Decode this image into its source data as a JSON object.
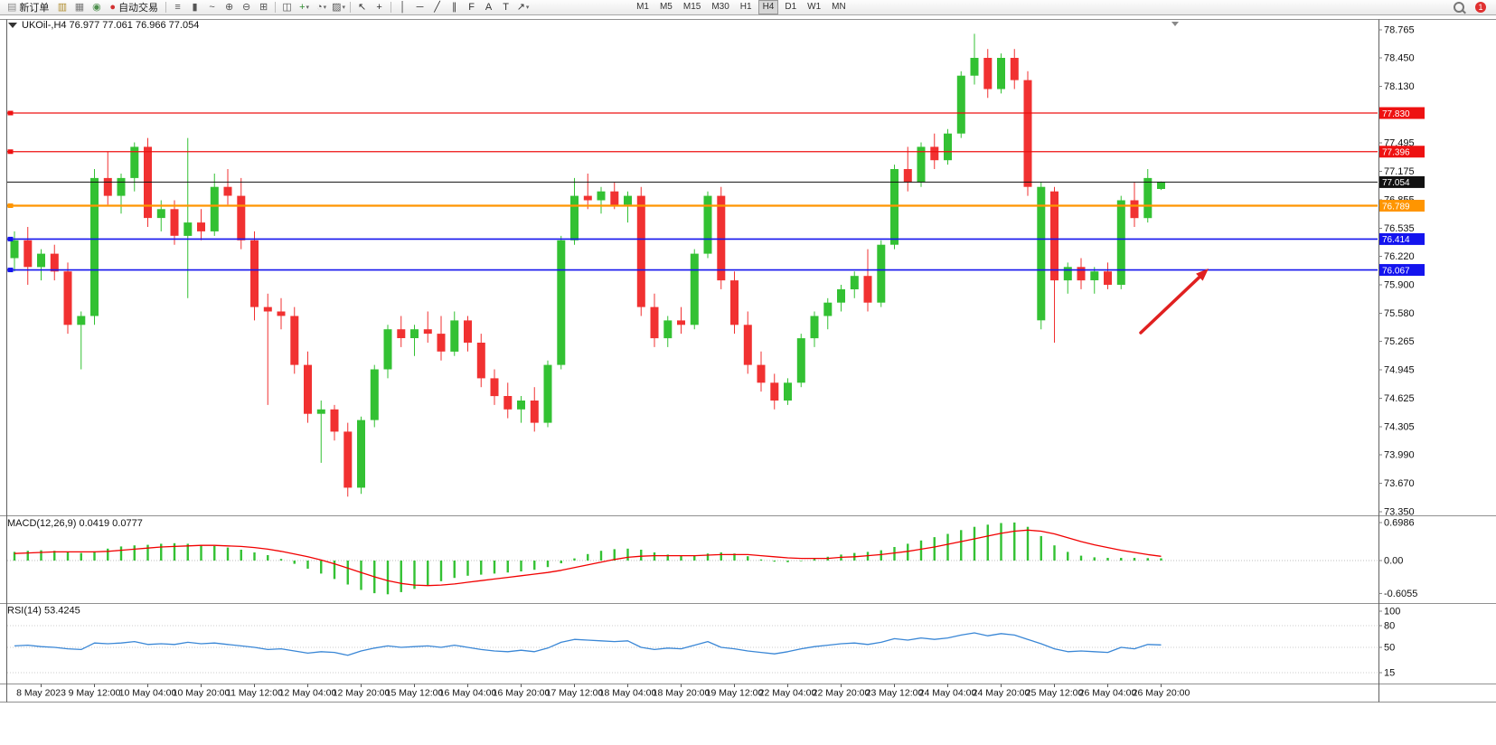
{
  "toolbar": {
    "items": [
      {
        "kind": "label",
        "name": "new-order-button",
        "glyph": "▤",
        "color": "#8a8a8a",
        "label": "新订单"
      },
      {
        "kind": "icon",
        "name": "market-watch-icon",
        "glyph": "▥",
        "color": "#b08d2f"
      },
      {
        "kind": "icon",
        "name": "print-icon",
        "glyph": "▦",
        "color": "#777777"
      },
      {
        "kind": "icon",
        "name": "navigator-icon",
        "glyph": "◉",
        "color": "#4d8f4d"
      },
      {
        "kind": "label",
        "name": "autotrading-button",
        "glyph": "●",
        "color": "#d23232",
        "label": "自动交易"
      },
      {
        "kind": "sep"
      },
      {
        "kind": "icon",
        "name": "bar-chart-mode-icon",
        "glyph": "≡",
        "color": "#555555"
      },
      {
        "kind": "icon",
        "name": "candlestick-mode-icon",
        "glyph": "▮",
        "color": "#555555"
      },
      {
        "kind": "icon",
        "name": "line-chart-mode-icon",
        "glyph": "~",
        "color": "#555555"
      },
      {
        "kind": "icon",
        "name": "zoom-in-icon",
        "glyph": "⊕",
        "color": "#555555"
      },
      {
        "kind": "icon",
        "name": "zoom-out-icon",
        "glyph": "⊖",
        "color": "#555555"
      },
      {
        "kind": "icon",
        "name": "tile-windows-icon",
        "glyph": "⊞",
        "color": "#555555"
      },
      {
        "kind": "sep"
      },
      {
        "kind": "icon",
        "name": "arrange-windows-icon",
        "glyph": "◫",
        "color": "#555555"
      },
      {
        "kind": "icon",
        "name": "indicators-icon",
        "glyph": "+",
        "color": "#2e8b2e",
        "dd": true
      },
      {
        "kind": "icon",
        "name": "periods-icon",
        "glyph": "◔",
        "color": "#555555",
        "dd": true
      },
      {
        "kind": "icon",
        "name": "templates-icon",
        "glyph": "▨",
        "color": "#555555",
        "dd": true
      },
      {
        "kind": "sep"
      },
      {
        "kind": "icon",
        "name": "cursor-icon",
        "glyph": "↖",
        "color": "#333333"
      },
      {
        "kind": "icon",
        "name": "crosshair-icon",
        "glyph": "+",
        "color": "#333333"
      },
      {
        "kind": "sep"
      },
      {
        "kind": "icon",
        "name": "vertical-line-icon",
        "glyph": "│",
        "color": "#333333"
      },
      {
        "kind": "icon",
        "name": "horizontal-line-icon",
        "glyph": "─",
        "color": "#333333"
      },
      {
        "kind": "icon",
        "name": "trendline-icon",
        "glyph": "╱",
        "color": "#333333"
      },
      {
        "kind": "icon",
        "name": "channel-icon",
        "glyph": "∥",
        "color": "#333333"
      },
      {
        "kind": "icon",
        "name": "fibonacci-icon",
        "glyph": "F",
        "color": "#333333"
      },
      {
        "kind": "icon",
        "name": "text-tool-icon",
        "glyph": "A",
        "color": "#333333"
      },
      {
        "kind": "icon",
        "name": "label-tool-icon",
        "glyph": "T",
        "color": "#333333"
      },
      {
        "kind": "icon",
        "name": "arrows-tool-icon",
        "glyph": "↗",
        "color": "#333333",
        "dd": true
      }
    ],
    "timeframes": {
      "items": [
        "M1",
        "M5",
        "M15",
        "M30",
        "H1",
        "H4",
        "D1",
        "W1",
        "MN"
      ],
      "active": "H4"
    },
    "right_badge": "1"
  },
  "chart_data": [
    {
      "type": "candlestick",
      "symbol": "UKOil-",
      "timeframe": "H4",
      "header": "UKOil-,H4  76.977 77.061 76.966 77.054",
      "ohlc_display": {
        "open": "76.977",
        "high": "77.061",
        "low": "76.966",
        "close": "77.054"
      },
      "ylim": [
        73.35,
        78.765
      ],
      "price_axis_labels": [
        "78.765",
        "78.450",
        "78.130",
        "77.495",
        "77.175",
        "76.855",
        "76.535",
        "76.220",
        "75.900",
        "75.580",
        "75.265",
        "74.945",
        "74.625",
        "74.305",
        "73.990",
        "73.670",
        "73.350"
      ],
      "colors": {
        "up": "#33c133",
        "down": "#f13131"
      },
      "hlines": [
        {
          "price": 77.83,
          "label": "77.830",
          "color": "#ee1111",
          "width": 1.3
        },
        {
          "price": 77.396,
          "label": "77.396",
          "color": "#ee1111",
          "width": 1.3
        },
        {
          "price": 76.789,
          "label": "76.789",
          "color": "#ff9500",
          "width": 2.2
        },
        {
          "price": 76.414,
          "label": "76.414",
          "color": "#1414ee",
          "width": 1.6
        },
        {
          "price": 76.067,
          "label": "76.067",
          "color": "#1414ee",
          "width": 1.6
        }
      ],
      "current_price": {
        "price": 77.054,
        "label": "77.054",
        "color": "#111111"
      },
      "arrow": {
        "from": [
          1262,
          351
        ],
        "to": [
          1337,
          280
        ],
        "color": "#e02020"
      },
      "candles": [
        [
          76.2,
          76.5,
          76.05,
          76.4
        ],
        [
          76.4,
          76.55,
          75.9,
          76.1
        ],
        [
          76.1,
          76.3,
          75.95,
          76.25
        ],
        [
          76.25,
          76.35,
          75.95,
          76.05
        ],
        [
          76.05,
          76.15,
          75.35,
          75.45
        ],
        [
          75.45,
          75.6,
          74.95,
          75.55
        ],
        [
          75.55,
          77.2,
          75.45,
          77.1
        ],
        [
          77.1,
          77.4,
          76.8,
          76.9
        ],
        [
          76.9,
          77.15,
          76.7,
          77.1
        ],
        [
          77.1,
          77.5,
          76.95,
          77.45
        ],
        [
          77.45,
          77.55,
          76.55,
          76.65
        ],
        [
          76.65,
          76.85,
          76.5,
          76.75
        ],
        [
          76.75,
          76.85,
          76.35,
          76.45
        ],
        [
          76.45,
          77.55,
          75.75,
          76.6
        ],
        [
          76.6,
          76.75,
          76.4,
          76.5
        ],
        [
          76.5,
          77.15,
          76.45,
          77.0
        ],
        [
          77.0,
          77.2,
          76.8,
          76.9
        ],
        [
          76.9,
          77.1,
          76.3,
          76.4
        ],
        [
          76.4,
          76.5,
          75.5,
          75.65
        ],
        [
          75.65,
          75.8,
          74.55,
          75.6
        ],
        [
          75.6,
          75.75,
          75.4,
          75.55
        ],
        [
          75.55,
          75.65,
          74.9,
          75.0
        ],
        [
          75.0,
          75.15,
          74.35,
          74.45
        ],
        [
          74.45,
          74.6,
          73.9,
          74.5
        ],
        [
          74.5,
          74.55,
          74.15,
          74.25
        ],
        [
          74.25,
          74.35,
          73.52,
          73.62
        ],
        [
          73.62,
          74.42,
          73.55,
          74.38
        ],
        [
          74.38,
          75.0,
          74.3,
          74.95
        ],
        [
          74.95,
          75.45,
          74.85,
          75.4
        ],
        [
          75.4,
          75.55,
          75.2,
          75.3
        ],
        [
          75.3,
          75.45,
          75.1,
          75.4
        ],
        [
          75.4,
          75.6,
          75.25,
          75.35
        ],
        [
          75.35,
          75.55,
          75.05,
          75.15
        ],
        [
          75.15,
          75.6,
          75.1,
          75.5
        ],
        [
          75.5,
          75.55,
          75.15,
          75.25
        ],
        [
          75.25,
          75.35,
          74.75,
          74.85
        ],
        [
          74.85,
          74.95,
          74.55,
          74.65
        ],
        [
          74.65,
          74.8,
          74.4,
          74.5
        ],
        [
          74.5,
          74.65,
          74.35,
          74.6
        ],
        [
          74.6,
          74.75,
          74.25,
          74.35
        ],
        [
          74.35,
          75.05,
          74.3,
          75.0
        ],
        [
          75.0,
          76.45,
          74.95,
          76.4
        ],
        [
          76.4,
          77.1,
          76.35,
          76.9
        ],
        [
          76.9,
          77.15,
          76.75,
          76.85
        ],
        [
          76.85,
          77.0,
          76.7,
          76.95
        ],
        [
          76.95,
          77.05,
          76.75,
          76.8
        ],
        [
          76.8,
          76.95,
          76.6,
          76.9
        ],
        [
          76.9,
          77.0,
          75.55,
          75.65
        ],
        [
          75.65,
          75.8,
          75.2,
          75.3
        ],
        [
          75.3,
          75.55,
          75.2,
          75.5
        ],
        [
          75.5,
          75.65,
          75.35,
          75.45
        ],
        [
          75.45,
          76.3,
          75.4,
          76.25
        ],
        [
          76.25,
          76.95,
          76.2,
          76.9
        ],
        [
          76.9,
          77.0,
          75.85,
          75.95
        ],
        [
          75.95,
          76.05,
          75.35,
          75.45
        ],
        [
          75.45,
          75.6,
          74.9,
          75.0
        ],
        [
          75.0,
          75.15,
          74.7,
          74.8
        ],
        [
          74.8,
          74.9,
          74.5,
          74.6
        ],
        [
          74.6,
          74.85,
          74.55,
          74.8
        ],
        [
          74.8,
          75.35,
          74.75,
          75.3
        ],
        [
          75.3,
          75.6,
          75.2,
          75.55
        ],
        [
          75.55,
          75.75,
          75.4,
          75.7
        ],
        [
          75.7,
          75.9,
          75.6,
          75.85
        ],
        [
          75.85,
          76.05,
          75.75,
          76.0
        ],
        [
          76.0,
          76.3,
          75.6,
          75.7
        ],
        [
          75.7,
          76.4,
          75.65,
          76.35
        ],
        [
          76.35,
          77.25,
          76.3,
          77.2
        ],
        [
          77.2,
          77.45,
          76.95,
          77.05
        ],
        [
          77.05,
          77.5,
          77.0,
          77.45
        ],
        [
          77.45,
          77.6,
          77.2,
          77.3
        ],
        [
          77.3,
          77.65,
          77.25,
          77.6
        ],
        [
          77.6,
          78.3,
          77.55,
          78.25
        ],
        [
          78.25,
          78.72,
          78.15,
          78.45
        ],
        [
          78.45,
          78.55,
          78.0,
          78.1
        ],
        [
          78.1,
          78.5,
          78.05,
          78.45
        ],
        [
          78.45,
          78.55,
          78.1,
          78.2
        ],
        [
          78.2,
          78.3,
          76.9,
          77.0
        ],
        [
          75.5,
          77.05,
          75.4,
          77.0
        ],
        [
          76.95,
          77.0,
          75.25,
          75.95
        ],
        [
          75.95,
          76.15,
          75.8,
          76.1
        ],
        [
          76.1,
          76.2,
          75.85,
          75.95
        ],
        [
          75.95,
          76.1,
          75.8,
          76.05
        ],
        [
          76.05,
          76.15,
          75.85,
          75.9
        ],
        [
          75.9,
          76.9,
          75.85,
          76.85
        ],
        [
          76.85,
          77.05,
          76.55,
          76.65
        ],
        [
          76.65,
          77.2,
          76.6,
          77.1
        ],
        [
          76.977,
          77.061,
          76.966,
          77.054
        ]
      ],
      "time_labels": [
        [
          2,
          "8 May 2023"
        ],
        [
          6,
          "9 May 12:00"
        ],
        [
          10,
          "10 May 04:00"
        ],
        [
          14,
          "10 May 20:00"
        ],
        [
          18,
          "11 May 12:00"
        ],
        [
          22,
          "12 May 04:00"
        ],
        [
          26,
          "12 May 20:00"
        ],
        [
          30,
          "15 May 12:00"
        ],
        [
          34,
          "16 May 04:00"
        ],
        [
          38,
          "16 May 20:00"
        ],
        [
          42,
          "17 May 12:00"
        ],
        [
          46,
          "18 May 04:00"
        ],
        [
          50,
          "18 May 20:00"
        ],
        [
          54,
          "19 May 12:00"
        ],
        [
          58,
          "22 May 04:00"
        ],
        [
          62,
          "22 May 20:00"
        ],
        [
          66,
          "23 May 12:00"
        ],
        [
          70,
          "24 May 04:00"
        ],
        [
          74,
          "24 May 20:00"
        ],
        [
          78,
          "25 May 12:00"
        ],
        [
          82,
          "26 May 04:00"
        ],
        [
          86,
          "26 May 20:00"
        ]
      ]
    },
    {
      "type": "bar",
      "name": "MACD",
      "title": "MACD(12,26,9)",
      "values_display": [
        "0.0419",
        "0.0777"
      ],
      "axis_labels": [
        "0.6986",
        "0.00",
        "-0.6055"
      ],
      "ylim": [
        -0.6055,
        0.6986
      ],
      "colors": {
        "histogram": "#33c133",
        "signal": "#f10000"
      },
      "histogram": [
        0.16,
        0.18,
        0.19,
        0.18,
        0.15,
        0.14,
        0.17,
        0.22,
        0.26,
        0.28,
        0.29,
        0.31,
        0.32,
        0.31,
        0.29,
        0.27,
        0.24,
        0.2,
        0.15,
        0.1,
        0.03,
        -0.06,
        -0.15,
        -0.24,
        -0.34,
        -0.44,
        -0.54,
        -0.6,
        -0.62,
        -0.58,
        -0.52,
        -0.45,
        -0.38,
        -0.32,
        -0.28,
        -0.26,
        -0.24,
        -0.22,
        -0.2,
        -0.17,
        -0.12,
        -0.05,
        0.04,
        0.12,
        0.18,
        0.21,
        0.22,
        0.2,
        0.15,
        0.11,
        0.09,
        0.1,
        0.13,
        0.15,
        0.13,
        0.08,
        0.02,
        -0.02,
        -0.03,
        -0.01,
        0.03,
        0.07,
        0.11,
        0.14,
        0.16,
        0.19,
        0.25,
        0.31,
        0.37,
        0.43,
        0.49,
        0.56,
        0.62,
        0.66,
        0.69,
        0.7,
        0.62,
        0.45,
        0.28,
        0.16,
        0.09,
        0.06,
        0.05,
        0.05,
        0.05,
        0.045,
        0.0419
      ],
      "signal": [
        0.13,
        0.14,
        0.15,
        0.16,
        0.16,
        0.16,
        0.16,
        0.17,
        0.19,
        0.21,
        0.23,
        0.25,
        0.26,
        0.27,
        0.28,
        0.28,
        0.27,
        0.26,
        0.24,
        0.21,
        0.17,
        0.12,
        0.07,
        0.01,
        -0.06,
        -0.14,
        -0.22,
        -0.3,
        -0.37,
        -0.42,
        -0.45,
        -0.46,
        -0.45,
        -0.43,
        -0.4,
        -0.37,
        -0.34,
        -0.31,
        -0.28,
        -0.25,
        -0.22,
        -0.18,
        -0.13,
        -0.08,
        -0.03,
        0.02,
        0.06,
        0.08,
        0.09,
        0.09,
        0.09,
        0.09,
        0.1,
        0.11,
        0.11,
        0.11,
        0.09,
        0.07,
        0.05,
        0.04,
        0.04,
        0.04,
        0.06,
        0.07,
        0.09,
        0.11,
        0.14,
        0.17,
        0.21,
        0.25,
        0.3,
        0.35,
        0.4,
        0.45,
        0.5,
        0.54,
        0.56,
        0.54,
        0.49,
        0.42,
        0.35,
        0.29,
        0.24,
        0.19,
        0.15,
        0.11,
        0.0777
      ]
    },
    {
      "type": "line",
      "name": "RSI",
      "title": "RSI(14)",
      "value_display": "53.4245",
      "axis_labels": [
        100,
        80,
        50,
        15
      ],
      "levels": [
        80,
        50,
        15
      ],
      "ylim": [
        0,
        100
      ],
      "color": "#3a87d6",
      "values": [
        52,
        53,
        51,
        50,
        48,
        47,
        56,
        55,
        56,
        58,
        54,
        55,
        54,
        57,
        55,
        56,
        54,
        52,
        50,
        47,
        48,
        45,
        42,
        44,
        43,
        39,
        45,
        49,
        52,
        50,
        51,
        52,
        50,
        53,
        50,
        47,
        45,
        44,
        46,
        44,
        49,
        57,
        61,
        60,
        59,
        58,
        59,
        50,
        47,
        49,
        48,
        53,
        58,
        50,
        48,
        45,
        43,
        41,
        44,
        48,
        51,
        53,
        55,
        56,
        54,
        57,
        62,
        60,
        63,
        61,
        63,
        67,
        70,
        66,
        69,
        67,
        61,
        55,
        48,
        44,
        45,
        44,
        43,
        50,
        48,
        54,
        53.42
      ]
    }
  ]
}
